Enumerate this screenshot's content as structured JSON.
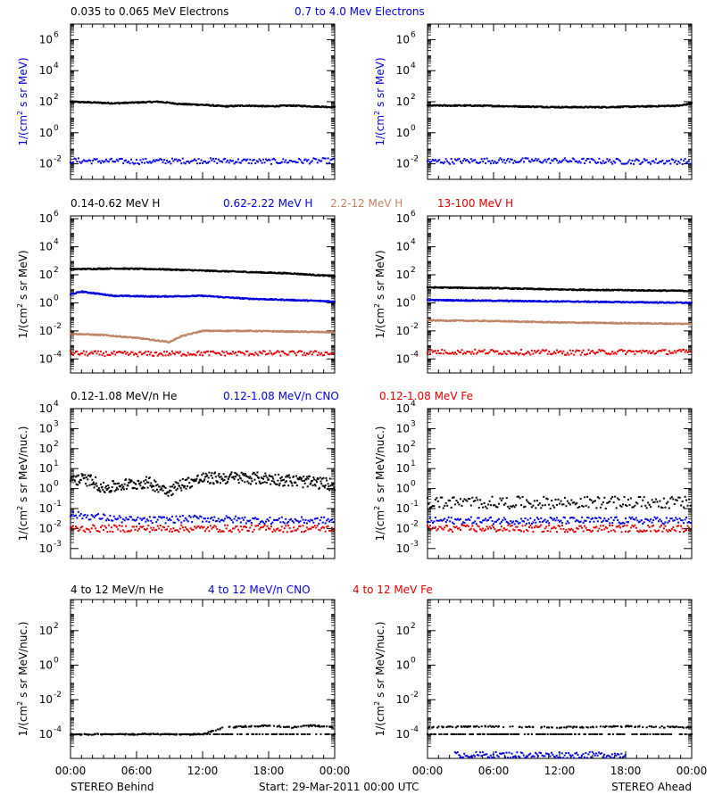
{
  "colors": {
    "black": "#000000",
    "blue": "#0000dd",
    "tan": "#c08464",
    "red": "#e00000",
    "ylabel_blue": "#0000dd"
  },
  "rows": [
    {
      "header": [
        {
          "text": "0.035 to 0.065 MeV Electrons",
          "color": "black"
        },
        {
          "text": "0.7 to 4.0 Mev Electrons",
          "color": "blue"
        }
      ],
      "ylabel_pre": "1/(cm",
      "ylabel_post": " s sr MeV)",
      "ylabel_color": "ylabel_blue",
      "tick_labels": [
        "10",
        "10",
        "10",
        "10",
        "10"
      ],
      "tick_exps": [
        "-2",
        "0",
        "2",
        "4",
        "6"
      ],
      "tick_values": [
        -2,
        0,
        2,
        4,
        6
      ]
    },
    {
      "header": [
        {
          "text": "0.14-0.62 MeV H",
          "color": "black"
        },
        {
          "text": "0.62-2.22 MeV H",
          "color": "blue"
        },
        {
          "text": "2.2-12 MeV H",
          "color": "tan"
        },
        {
          "text": "13-100 MeV H",
          "color": "red"
        }
      ],
      "ylabel_pre": "1/(cm",
      "ylabel_post": " s sr MeV)",
      "ylabel_color": "black",
      "tick_labels": [
        "10",
        "10",
        "10",
        "10",
        "10",
        "10"
      ],
      "tick_exps": [
        "-4",
        "-2",
        "0",
        "2",
        "4",
        "6"
      ],
      "tick_values": [
        -4,
        -2,
        0,
        2,
        4,
        6
      ]
    },
    {
      "header": [
        {
          "text": "0.12-1.08 MeV/n He",
          "color": "black"
        },
        {
          "text": "0.12-1.08 MeV/n CNO",
          "color": "blue"
        },
        {
          "text": "0.12-1.08 MeV Fe",
          "color": "red"
        }
      ],
      "ylabel_pre": "1/(cm",
      "ylabel_post": " s sr MeV/nuc.)",
      "ylabel_color": "black",
      "tick_labels": [
        "10",
        "10",
        "10",
        "10",
        "10",
        "10",
        "10",
        "10"
      ],
      "tick_exps": [
        "-3",
        "-2",
        "-1",
        "0",
        "1",
        "2",
        "3",
        "4"
      ],
      "tick_values": [
        -3,
        -2,
        -1,
        0,
        1,
        2,
        3,
        4
      ]
    },
    {
      "header": [
        {
          "text": "4 to 12 MeV/n He",
          "color": "black"
        },
        {
          "text": "4 to 12 MeV/n CNO",
          "color": "blue"
        },
        {
          "text": "4 to 12 MeV Fe",
          "color": "red"
        }
      ],
      "ylabel_pre": "1/(cm",
      "ylabel_post": " s sr MeV/nuc.)",
      "ylabel_color": "black",
      "tick_labels": [
        "10",
        "10",
        "10",
        "10"
      ],
      "tick_exps": [
        "-4",
        "-2",
        "0",
        "2"
      ],
      "tick_values": [
        -4,
        -2,
        0,
        2
      ]
    }
  ],
  "x_ticks": [
    "00:00",
    "06:00",
    "12:00",
    "18:00",
    "00:00"
  ],
  "footer": {
    "left": "STEREO Behind",
    "center": "Start: 29-Mar-2011 00:00 UTC",
    "right": "STEREO Ahead"
  },
  "chart_data": [
    {
      "type": "scatter",
      "panel": "electrons-behind",
      "x_unit": "hours",
      "xlim": [
        0,
        24
      ],
      "y_scale": "log",
      "ylim_log10": [
        -3,
        7
      ],
      "series": [
        {
          "color": "black",
          "log10_y": [
            [
              0,
              2.0
            ],
            [
              2,
              1.95
            ],
            [
              4,
              1.9
            ],
            [
              6,
              1.95
            ],
            [
              8,
              2.0
            ],
            [
              10,
              1.85
            ],
            [
              12,
              1.8
            ],
            [
              14,
              1.7
            ],
            [
              16,
              1.75
            ],
            [
              18,
              1.7
            ],
            [
              20,
              1.75
            ],
            [
              22,
              1.7
            ],
            [
              24,
              1.65
            ]
          ]
        },
        {
          "color": "blue",
          "log10_y": [
            [
              0,
              -1.8
            ],
            [
              6,
              -1.85
            ],
            [
              12,
              -1.8
            ],
            [
              18,
              -1.85
            ],
            [
              24,
              -1.8
            ]
          ]
        }
      ]
    },
    {
      "type": "scatter",
      "panel": "electrons-ahead",
      "x_unit": "hours",
      "xlim": [
        0,
        24
      ],
      "y_scale": "log",
      "ylim_log10": [
        -3,
        7
      ],
      "series": [
        {
          "color": "black",
          "log10_y": [
            [
              0,
              1.75
            ],
            [
              4,
              1.75
            ],
            [
              8,
              1.7
            ],
            [
              12,
              1.65
            ],
            [
              16,
              1.65
            ],
            [
              20,
              1.7
            ],
            [
              23,
              1.75
            ],
            [
              24,
              1.9
            ]
          ]
        },
        {
          "color": "blue",
          "log10_y": [
            [
              0,
              -1.85
            ],
            [
              6,
              -1.8
            ],
            [
              12,
              -1.8
            ],
            [
              18,
              -1.85
            ],
            [
              24,
              -1.85
            ]
          ]
        }
      ]
    },
    {
      "type": "scatter",
      "panel": "protons-behind",
      "x_unit": "hours",
      "xlim": [
        0,
        24
      ],
      "y_scale": "log",
      "ylim_log10": [
        -5,
        6.2
      ],
      "series": [
        {
          "color": "black",
          "log10_y": [
            [
              0,
              2.4
            ],
            [
              4,
              2.45
            ],
            [
              8,
              2.4
            ],
            [
              12,
              2.3
            ],
            [
              16,
              2.2
            ],
            [
              20,
              2.1
            ],
            [
              24,
              1.9
            ]
          ]
        },
        {
          "color": "blue",
          "log10_y": [
            [
              0,
              0.6
            ],
            [
              1,
              0.8
            ],
            [
              4,
              0.5
            ],
            [
              8,
              0.45
            ],
            [
              12,
              0.5
            ],
            [
              16,
              0.3
            ],
            [
              20,
              0.2
            ],
            [
              24,
              0.1
            ]
          ]
        },
        {
          "color": "tan",
          "log10_y": [
            [
              0,
              -2.2
            ],
            [
              3,
              -2.3
            ],
            [
              6,
              -2.5
            ],
            [
              9,
              -2.8
            ],
            [
              10,
              -2.4
            ],
            [
              12,
              -2.0
            ],
            [
              16,
              -2.0
            ],
            [
              20,
              -2.05
            ],
            [
              24,
              -2.1
            ]
          ]
        },
        {
          "color": "red",
          "log10_y": [
            [
              0,
              -3.6
            ],
            [
              6,
              -3.65
            ],
            [
              12,
              -3.6
            ],
            [
              18,
              -3.6
            ],
            [
              24,
              -3.6
            ]
          ]
        }
      ]
    },
    {
      "type": "scatter",
      "panel": "protons-ahead",
      "x_unit": "hours",
      "xlim": [
        0,
        24
      ],
      "y_scale": "log",
      "ylim_log10": [
        -5,
        6.2
      ],
      "series": [
        {
          "color": "black",
          "log10_y": [
            [
              0,
              1.1
            ],
            [
              6,
              1.05
            ],
            [
              12,
              0.95
            ],
            [
              18,
              0.9
            ],
            [
              24,
              0.85
            ]
          ]
        },
        {
          "color": "blue",
          "log10_y": [
            [
              0,
              0.2
            ],
            [
              6,
              0.15
            ],
            [
              12,
              0.1
            ],
            [
              18,
              0.05
            ],
            [
              24,
              0.0
            ]
          ]
        },
        {
          "color": "tan",
          "log10_y": [
            [
              0,
              -1.25
            ],
            [
              6,
              -1.3
            ],
            [
              12,
              -1.4
            ],
            [
              18,
              -1.45
            ],
            [
              24,
              -1.5
            ]
          ]
        },
        {
          "color": "red",
          "log10_y": [
            [
              0,
              -3.5
            ],
            [
              6,
              -3.5
            ],
            [
              12,
              -3.55
            ],
            [
              18,
              -3.5
            ],
            [
              24,
              -3.5
            ]
          ]
        }
      ]
    },
    {
      "type": "scatter",
      "panel": "heavy-low-behind",
      "x_unit": "hours",
      "xlim": [
        0,
        24
      ],
      "y_scale": "log",
      "ylim_log10": [
        -3.5,
        4
      ],
      "series": [
        {
          "color": "black",
          "log10_y": [
            [
              0,
              0.5
            ],
            [
              2,
              0.4
            ],
            [
              3,
              0.0
            ],
            [
              5,
              0.2
            ],
            [
              7,
              0.3
            ],
            [
              9,
              -0.1
            ],
            [
              10,
              0.2
            ],
            [
              12,
              0.5
            ],
            [
              15,
              0.55
            ],
            [
              18,
              0.5
            ],
            [
              21,
              0.35
            ],
            [
              24,
              0.2
            ]
          ]
        },
        {
          "color": "blue",
          "log10_y": [
            [
              0,
              -1.3
            ],
            [
              6,
              -1.6
            ],
            [
              12,
              -1.5
            ],
            [
              18,
              -1.6
            ],
            [
              24,
              -1.6
            ]
          ]
        },
        {
          "color": "red",
          "log10_y": [
            [
              0,
              -2.0
            ],
            [
              12,
              -2.0
            ],
            [
              24,
              -2.0
            ]
          ]
        }
      ]
    },
    {
      "type": "scatter",
      "panel": "heavy-low-ahead",
      "x_unit": "hours",
      "xlim": [
        0,
        24
      ],
      "y_scale": "log",
      "ylim_log10": [
        -3.5,
        4
      ],
      "series": [
        {
          "color": "black",
          "log10_y": [
            [
              0,
              -0.7
            ],
            [
              6,
              -0.7
            ],
            [
              12,
              -0.7
            ],
            [
              18,
              -0.7
            ],
            [
              24,
              -0.7
            ]
          ]
        },
        {
          "color": "blue",
          "log10_y": [
            [
              0,
              -1.6
            ],
            [
              12,
              -1.6
            ],
            [
              24,
              -1.6
            ]
          ]
        },
        {
          "color": "red",
          "log10_y": [
            [
              0,
              -2.0
            ],
            [
              12,
              -2.0
            ],
            [
              24,
              -2.0
            ]
          ]
        }
      ]
    },
    {
      "type": "scatter",
      "panel": "heavy-high-behind",
      "x_unit": "hours",
      "xlim": [
        0,
        24
      ],
      "y_scale": "log",
      "ylim_log10": [
        -5.4,
        3.8
      ],
      "series": [
        {
          "color": "black",
          "log10_y": [
            [
              0,
              -4.0
            ],
            [
              12,
              -4.0
            ],
            [
              14,
              -3.6
            ],
            [
              16,
              -3.55
            ],
            [
              18,
              -3.5
            ],
            [
              20,
              -3.6
            ],
            [
              22,
              -3.5
            ],
            [
              24,
              -3.6
            ]
          ]
        }
      ]
    },
    {
      "type": "scatter",
      "panel": "heavy-high-ahead",
      "x_unit": "hours",
      "xlim": [
        0,
        24
      ],
      "y_scale": "log",
      "ylim_log10": [
        -5.4,
        3.8
      ],
      "series": [
        {
          "color": "black",
          "log10_y": [
            [
              0,
              -3.6
            ],
            [
              6,
              -3.55
            ],
            [
              12,
              -3.6
            ],
            [
              18,
              -3.55
            ],
            [
              24,
              -3.6
            ]
          ]
        },
        {
          "color": "blue",
          "log10_y": [
            [
              2.5,
              -5.2
            ],
            [
              6,
              -5.2
            ],
            [
              18,
              -5.2
            ]
          ]
        }
      ]
    }
  ]
}
